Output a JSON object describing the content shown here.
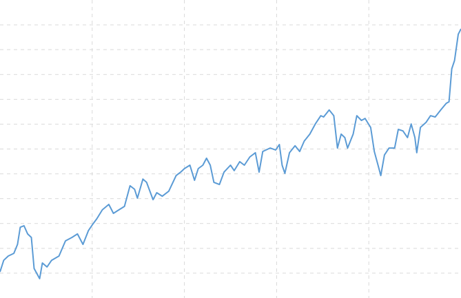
{
  "chart_data": {
    "type": "line",
    "x": [
      0,
      0.04,
      0.09,
      0.15,
      0.19,
      0.22,
      0.26,
      0.3,
      0.34,
      0.37,
      0.43,
      0.46,
      0.51,
      0.56,
      0.64,
      0.71,
      0.78,
      0.84,
      0.9,
      0.96,
      1.01,
      1.05,
      1.11,
      1.18,
      1.23,
      1.29,
      1.35,
      1.41,
      1.46,
      1.49,
      1.55,
      1.59,
      1.66,
      1.7,
      1.76,
      1.83,
      1.91,
      1.96,
      2.0,
      2.06,
      2.11,
      2.15,
      2.2,
      2.24,
      2.28,
      2.32,
      2.38,
      2.43,
      2.5,
      2.54,
      2.6,
      2.65,
      2.71,
      2.77,
      2.81,
      2.85,
      2.93,
      2.99,
      3.03,
      3.06,
      3.09,
      3.14,
      3.2,
      3.25,
      3.3,
      3.36,
      3.42,
      3.48,
      3.51,
      3.57,
      3.62,
      3.66,
      3.7,
      3.74,
      3.77,
      3.83,
      3.87,
      3.92,
      3.96,
      4.02,
      4.06,
      4.1,
      4.13,
      4.17,
      4.22,
      4.28,
      4.32,
      4.37,
      4.42,
      4.46,
      4.5,
      4.52,
      4.56,
      4.62,
      4.67,
      4.72,
      4.78,
      4.84,
      4.87,
      4.9,
      4.93,
      4.97,
      5.0
    ],
    "values": [
      1.05,
      1.52,
      1.69,
      1.8,
      2.16,
      2.85,
      2.91,
      2.58,
      2.44,
      1.19,
      0.78,
      1.41,
      1.25,
      1.52,
      1.69,
      2.3,
      2.44,
      2.58,
      2.16,
      2.72,
      2.99,
      3.19,
      3.55,
      3.77,
      3.41,
      3.55,
      3.69,
      4.52,
      4.38,
      4.02,
      4.79,
      4.66,
      3.96,
      4.24,
      4.1,
      4.3,
      4.93,
      5.07,
      5.21,
      5.35,
      4.74,
      5.21,
      5.35,
      5.63,
      5.35,
      4.66,
      4.57,
      5.07,
      5.35,
      5.13,
      5.49,
      5.35,
      5.68,
      5.85,
      5.07,
      5.9,
      6.04,
      5.96,
      6.18,
      5.35,
      5.02,
      5.85,
      6.13,
      5.9,
      6.32,
      6.6,
      7.01,
      7.34,
      7.29,
      7.57,
      7.34,
      6.04,
      6.6,
      6.46,
      6.04,
      6.6,
      7.34,
      7.15,
      7.23,
      6.87,
      5.9,
      5.35,
      4.93,
      5.76,
      6.04,
      6.04,
      6.79,
      6.73,
      6.46,
      7.01,
      6.46,
      5.85,
      6.87,
      7.07,
      7.34,
      7.29,
      7.57,
      7.84,
      7.9,
      9.23,
      9.56,
      10.62,
      10.84
    ],
    "color": "#5b9bd5",
    "xlim": [
      0,
      5
    ],
    "xticks": [
      1,
      2,
      3,
      4
    ],
    "ylim": [
      0,
      12
    ],
    "yticks": [
      1,
      2,
      3,
      4,
      5,
      6,
      7,
      8,
      9,
      10,
      11
    ],
    "grid": true
  }
}
